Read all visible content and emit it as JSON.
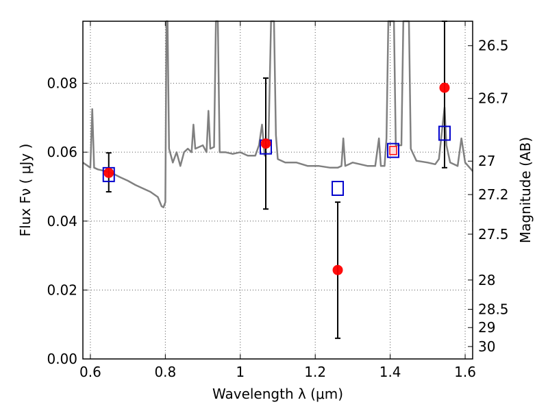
{
  "chart_data": {
    "type": "scatter",
    "xlabel": "Wavelength  λ (μm)",
    "ylabel": "Flux  Fν  ( μJy )",
    "ylabel_right": "Magnitude (AB)",
    "xlim": [
      0.58,
      1.62
    ],
    "ylim": [
      0.0,
      0.098
    ],
    "grid": true,
    "x_ticks": [
      0.6,
      0.8,
      1.0,
      1.2,
      1.4,
      1.6
    ],
    "x_tick_labels": [
      "0.6",
      "0.8",
      "1",
      "1.2",
      "1.4",
      "1.6"
    ],
    "y_ticks": [
      0.0,
      0.02,
      0.04,
      0.06,
      0.08
    ],
    "y_tick_labels": [
      "0.00",
      "0.02",
      "0.04",
      "0.06",
      "0.08"
    ],
    "right_ticks": [
      {
        "label": "26.5",
        "flux": 0.0909
      },
      {
        "label": "26.7",
        "flux": 0.0756
      },
      {
        "label": "27",
        "flux": 0.0574
      },
      {
        "label": "27.2",
        "flux": 0.0477
      },
      {
        "label": "27.5",
        "flux": 0.0362
      },
      {
        "label": "28",
        "flux": 0.0229
      },
      {
        "label": "28.5",
        "flux": 0.0144
      },
      {
        "label": "29",
        "flux": 0.0091
      },
      {
        "label": "30",
        "flux": 0.0036
      }
    ],
    "colors": {
      "model_spectrum": "#808080",
      "observed": "#ff0000",
      "model_photometry": "#0000cc",
      "errorbar": "#000000",
      "grid": "#555555"
    },
    "series": [
      {
        "kind": "line",
        "role": "model_spectrum",
        "points": [
          [
            0.58,
            0.057
          ],
          [
            0.6,
            0.0555
          ],
          [
            0.605,
            0.0725
          ],
          [
            0.61,
            0.0555
          ],
          [
            0.62,
            0.055
          ],
          [
            0.64,
            0.0545
          ],
          [
            0.66,
            0.0538
          ],
          [
            0.68,
            0.0527
          ],
          [
            0.7,
            0.0517
          ],
          [
            0.72,
            0.0505
          ],
          [
            0.74,
            0.0495
          ],
          [
            0.76,
            0.0485
          ],
          [
            0.78,
            0.047
          ],
          [
            0.79,
            0.0443
          ],
          [
            0.795,
            0.044
          ],
          [
            0.8,
            0.0455
          ],
          [
            0.803,
            0.098
          ],
          [
            0.806,
            0.098
          ],
          [
            0.81,
            0.061
          ],
          [
            0.82,
            0.057
          ],
          [
            0.83,
            0.06
          ],
          [
            0.84,
            0.056
          ],
          [
            0.85,
            0.06
          ],
          [
            0.86,
            0.061
          ],
          [
            0.87,
            0.06
          ],
          [
            0.875,
            0.068
          ],
          [
            0.88,
            0.061
          ],
          [
            0.9,
            0.062
          ],
          [
            0.91,
            0.06
          ],
          [
            0.915,
            0.072
          ],
          [
            0.92,
            0.061
          ],
          [
            0.93,
            0.0615
          ],
          [
            0.935,
            0.098
          ],
          [
            0.94,
            0.098
          ],
          [
            0.945,
            0.06
          ],
          [
            0.96,
            0.06
          ],
          [
            0.98,
            0.0595
          ],
          [
            1.0,
            0.06
          ],
          [
            1.02,
            0.059
          ],
          [
            1.04,
            0.059
          ],
          [
            1.05,
            0.062
          ],
          [
            1.058,
            0.068
          ],
          [
            1.065,
            0.059
          ],
          [
            1.07,
            0.062
          ],
          [
            1.075,
            0.062
          ],
          [
            1.082,
            0.098
          ],
          [
            1.09,
            0.098
          ],
          [
            1.095,
            0.065
          ],
          [
            1.1,
            0.058
          ],
          [
            1.12,
            0.057
          ],
          [
            1.15,
            0.057
          ],
          [
            1.18,
            0.056
          ],
          [
            1.21,
            0.056
          ],
          [
            1.24,
            0.0555
          ],
          [
            1.26,
            0.0555
          ],
          [
            1.27,
            0.056
          ],
          [
            1.275,
            0.064
          ],
          [
            1.28,
            0.056
          ],
          [
            1.3,
            0.057
          ],
          [
            1.32,
            0.0565
          ],
          [
            1.34,
            0.056
          ],
          [
            1.36,
            0.056
          ],
          [
            1.37,
            0.064
          ],
          [
            1.375,
            0.056
          ],
          [
            1.385,
            0.056
          ],
          [
            1.39,
            0.064
          ],
          [
            1.395,
            0.098
          ],
          [
            1.41,
            0.098
          ],
          [
            1.415,
            0.062
          ],
          [
            1.43,
            0.062
          ],
          [
            1.435,
            0.098
          ],
          [
            1.45,
            0.098
          ],
          [
            1.455,
            0.061
          ],
          [
            1.47,
            0.0575
          ],
          [
            1.5,
            0.057
          ],
          [
            1.52,
            0.0565
          ],
          [
            1.53,
            0.058
          ],
          [
            1.54,
            0.068
          ],
          [
            1.545,
            0.073
          ],
          [
            1.55,
            0.062
          ],
          [
            1.56,
            0.057
          ],
          [
            1.57,
            0.0565
          ],
          [
            1.58,
            0.056
          ],
          [
            1.59,
            0.064
          ],
          [
            1.6,
            0.057
          ],
          [
            1.62,
            0.0545
          ]
        ]
      },
      {
        "kind": "errorbar_points",
        "role": "observed",
        "points": [
          {
            "x": 0.649,
            "y": 0.054,
            "ylo": 0.0485,
            "yhi": 0.0598
          },
          {
            "x": 1.068,
            "y": 0.0625,
            "ylo": 0.0435,
            "yhi": 0.0815
          },
          {
            "x": 1.26,
            "y": 0.0258,
            "ylo": 0.006,
            "yhi": 0.0455
          },
          {
            "x": 1.545,
            "y": 0.0787,
            "ylo": 0.0555,
            "yhi": 0.098
          }
        ]
      },
      {
        "kind": "square_markers",
        "role": "model_photometry",
        "points": [
          {
            "x": 0.649,
            "y": 0.0535
          },
          {
            "x": 1.068,
            "y": 0.0615
          },
          {
            "x": 1.26,
            "y": 0.0495
          },
          {
            "x": 1.408,
            "y": 0.0605
          },
          {
            "x": 1.545,
            "y": 0.0655
          }
        ]
      },
      {
        "kind": "small_markers",
        "role": "extra_model",
        "points": [
          {
            "x": 1.408,
            "y": 0.0605
          }
        ]
      }
    ]
  }
}
